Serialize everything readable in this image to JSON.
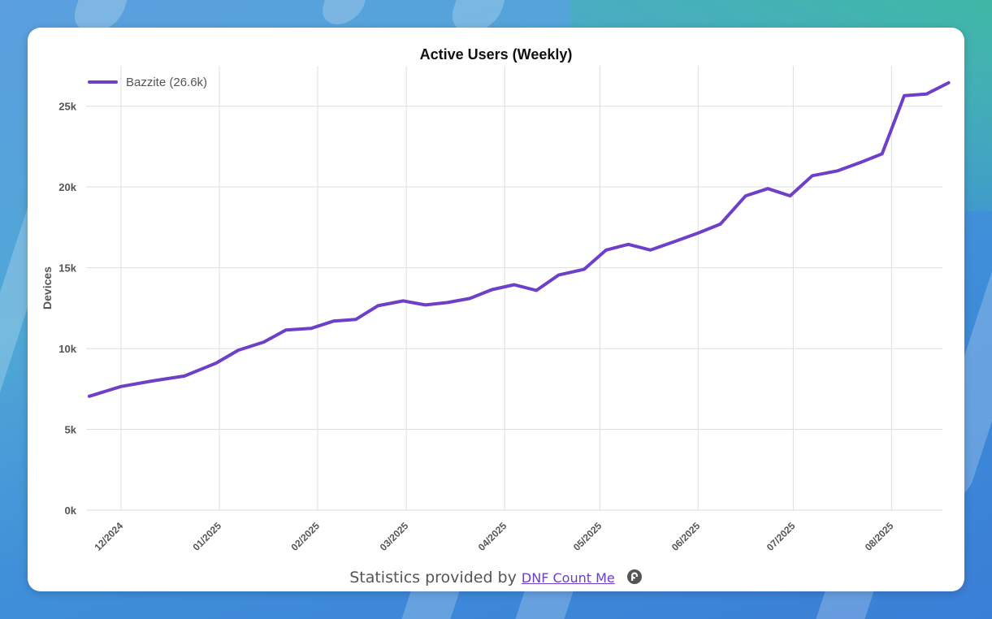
{
  "page": {
    "footer_text": "Statistics provided by",
    "footer_link": "DNF Count Me",
    "footer_icon": "fedora-logo-icon"
  },
  "colors": {
    "line": "#6e3fc8",
    "grid": "#dedede",
    "axis_text": "#555555"
  },
  "chart_data": {
    "type": "line",
    "title": "Active Users (Weekly)",
    "xlabel": "",
    "ylabel": "Devices",
    "ylim": [
      0,
      27500
    ],
    "y_ticks": [
      0,
      5000,
      10000,
      15000,
      20000,
      25000
    ],
    "y_tick_labels": [
      "0k",
      "5k",
      "10k",
      "15k",
      "20k",
      "25k"
    ],
    "x_tick_labels": [
      "12/2024",
      "01/2025",
      "02/2025",
      "03/2025",
      "04/2025",
      "05/2025",
      "06/2025",
      "07/2025",
      "08/2025"
    ],
    "x_tick_dates": [
      "2024-12-01",
      "2025-01-01",
      "2025-02-01",
      "2025-03-01",
      "2025-04-01",
      "2025-05-01",
      "2025-06-01",
      "2025-07-01",
      "2025-08-01"
    ],
    "grid": true,
    "legend_position": "top-left",
    "series": [
      {
        "name": "Bazzite (26.6k)",
        "color": "#6e3fc8",
        "x": [
          "2024-11-21",
          "2024-12-01",
          "2024-12-11",
          "2024-12-21",
          "2024-12-31",
          "2025-01-07",
          "2025-01-15",
          "2025-01-22",
          "2025-01-30",
          "2025-02-06",
          "2025-02-13",
          "2025-02-20",
          "2025-02-28",
          "2025-03-07",
          "2025-03-14",
          "2025-03-21",
          "2025-03-28",
          "2025-04-04",
          "2025-04-11",
          "2025-04-18",
          "2025-04-26",
          "2025-05-03",
          "2025-05-10",
          "2025-05-17",
          "2025-05-25",
          "2025-06-01",
          "2025-06-08",
          "2025-06-16",
          "2025-06-23",
          "2025-06-30",
          "2025-07-07",
          "2025-07-15",
          "2025-07-22",
          "2025-07-29",
          "2025-08-05",
          "2025-08-12",
          "2025-08-19"
        ],
        "values": [
          7050,
          7650,
          8000,
          8300,
          9100,
          9900,
          10400,
          11150,
          11250,
          11700,
          11800,
          12650,
          12950,
          12700,
          12850,
          13100,
          13650,
          13950,
          13600,
          14550,
          14900,
          16100,
          16450,
          16100,
          16650,
          17150,
          17700,
          19450,
          19900,
          19450,
          20700,
          21000,
          21500,
          22050,
          25650,
          25750,
          26450
        ]
      }
    ]
  }
}
